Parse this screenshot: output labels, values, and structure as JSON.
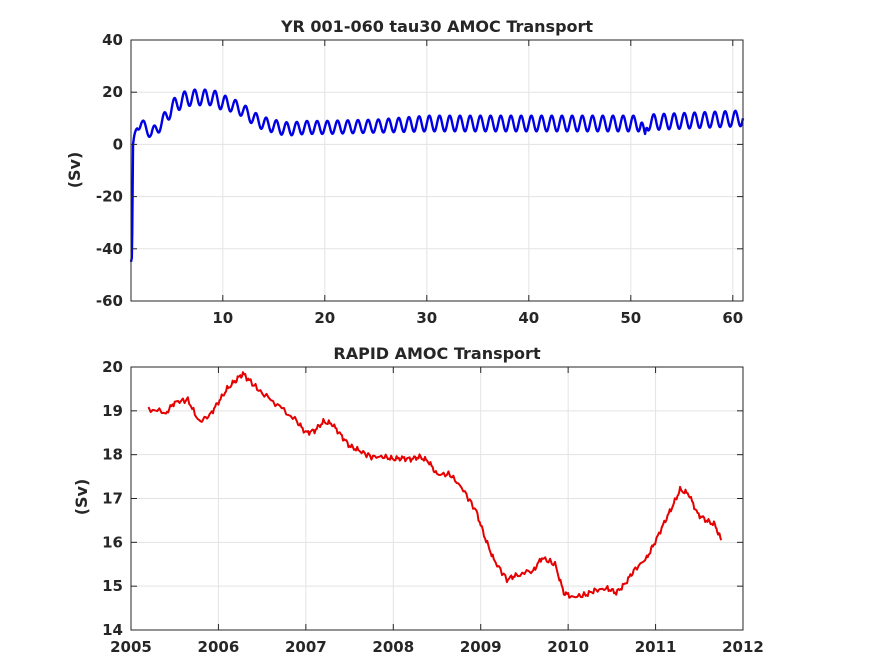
{
  "colors": {
    "top_series": "#0000e6",
    "bottom_series": "#e60000",
    "axes": "#262626",
    "grid": "#e3e3e3"
  },
  "chart_data": [
    {
      "type": "line",
      "title": "YR 001-060 tau30 AMOC Transport",
      "xlabel": "",
      "ylabel": "(Sv)",
      "xlim": [
        1,
        61
      ],
      "ylim": [
        -60,
        40
      ],
      "xticks": [
        10,
        20,
        30,
        40,
        50,
        60
      ],
      "xtick_labels": [
        "10",
        "20",
        "30",
        "40",
        "50",
        "60"
      ],
      "yticks": [
        40,
        20,
        0,
        -20,
        -40,
        -60
      ],
      "ytick_labels": [
        "40",
        "20",
        "0",
        "-20",
        "-40",
        "-60"
      ],
      "grid": true,
      "series": [
        {
          "color": "#0000e6",
          "x": [
            1.0,
            1.1,
            1.2,
            1.3,
            1.6,
            2.0,
            2.5,
            3.0,
            4.0,
            5.0,
            6.0,
            7.0,
            8.0,
            8.5,
            9.0,
            10.0,
            11.0,
            12.0,
            13.0,
            14.0,
            15.0,
            16.0,
            17.0,
            18.0,
            20.0,
            25.0,
            30.0,
            35.0,
            40.0,
            45.0,
            51.0,
            51.4,
            51.6,
            51.8,
            52.0,
            55.0,
            58.0,
            61.0
          ],
          "y": [
            -45,
            -43,
            0,
            3,
            7,
            8,
            6,
            4,
            8,
            14,
            17,
            18,
            18,
            18,
            18,
            16,
            15,
            13,
            10,
            8,
            7,
            6,
            6,
            6.5,
            6.5,
            7,
            8,
            8,
            8,
            8,
            8,
            4,
            8,
            8.5,
            8.5,
            9,
            9.5,
            10
          ],
          "seasonal_amplitude": [
            0,
            0,
            0,
            0,
            1.5,
            2,
            2,
            2,
            2.5,
            3,
            3,
            3,
            3,
            3,
            3,
            3,
            2.5,
            2.5,
            2.5,
            2.5,
            2.5,
            2.5,
            2.5,
            2.5,
            2.5,
            2.5,
            3,
            3,
            3,
            3,
            3,
            0,
            3,
            3,
            3,
            3,
            3,
            3
          ],
          "seasonal_period": 1.0
        }
      ]
    },
    {
      "type": "line",
      "title": "RAPID AMOC Transport",
      "xlabel": "",
      "ylabel": "(Sv)",
      "xlim": [
        2005,
        2012
      ],
      "ylim": [
        14,
        20
      ],
      "xticks": [
        2005,
        2006,
        2007,
        2008,
        2009,
        2010,
        2011,
        2012
      ],
      "xtick_labels": [
        "2005",
        "2006",
        "2007",
        "2008",
        "2009",
        "2010",
        "2011",
        "2012"
      ],
      "yticks": [
        20,
        19,
        18,
        17,
        16,
        15,
        14
      ],
      "ytick_labels": [
        "20",
        "19",
        "18",
        "17",
        "16",
        "15",
        "14"
      ],
      "grid": true,
      "series": [
        {
          "color": "#e60000",
          "x": [
            2005.2,
            2005.4,
            2005.5,
            2005.65,
            2005.78,
            2005.9,
            2006.0,
            2006.1,
            2006.2,
            2006.28,
            2006.35,
            2006.5,
            2006.7,
            2006.9,
            2007.0,
            2007.1,
            2007.2,
            2007.3,
            2007.4,
            2007.5,
            2007.6,
            2007.75,
            2007.9,
            2008.0,
            2008.1,
            2008.2,
            2008.3,
            2008.4,
            2008.5,
            2008.65,
            2008.8,
            2008.95,
            2009.05,
            2009.15,
            2009.3,
            2009.4,
            2009.6,
            2009.7,
            2009.85,
            2009.95,
            2010.05,
            2010.2,
            2010.3,
            2010.45,
            2010.55,
            2010.65,
            2010.75,
            2010.9,
            2010.98,
            2011.1,
            2011.2,
            2011.28,
            2011.38,
            2011.48,
            2011.58,
            2011.68,
            2011.75
          ],
          "y": [
            19.05,
            18.95,
            19.2,
            19.25,
            18.75,
            18.9,
            19.2,
            19.5,
            19.7,
            19.85,
            19.7,
            19.4,
            19.1,
            18.75,
            18.5,
            18.55,
            18.75,
            18.7,
            18.45,
            18.2,
            18.1,
            17.95,
            17.95,
            17.9,
            17.92,
            17.9,
            17.95,
            17.85,
            17.55,
            17.55,
            17.2,
            16.7,
            16.1,
            15.6,
            15.15,
            15.25,
            15.35,
            15.65,
            15.5,
            14.85,
            14.75,
            14.8,
            14.9,
            14.95,
            14.85,
            15.05,
            15.35,
            15.65,
            15.95,
            16.45,
            16.85,
            17.2,
            17.1,
            16.65,
            16.5,
            16.4,
            16.05
          ]
        }
      ]
    }
  ]
}
